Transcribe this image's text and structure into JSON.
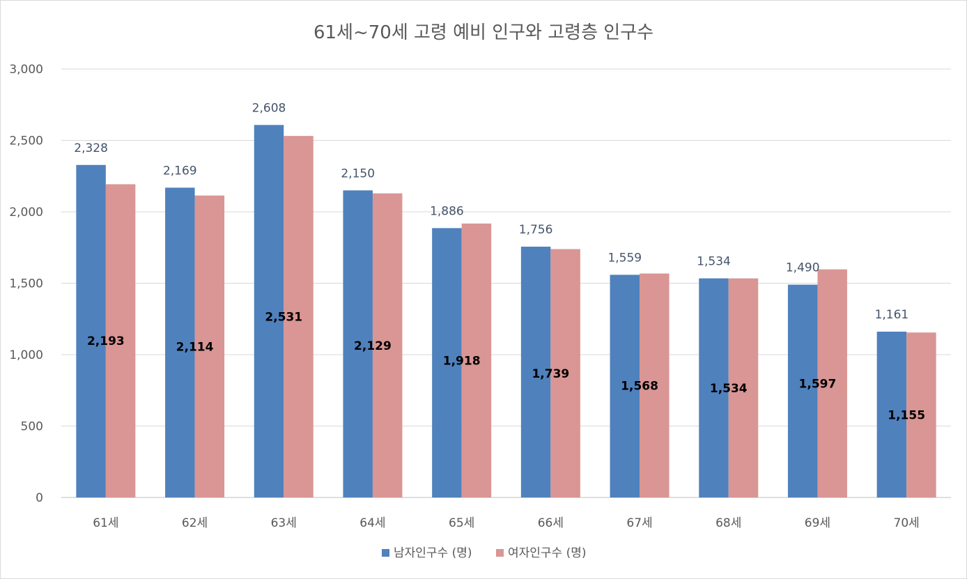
{
  "chart_data": {
    "type": "bar",
    "title": "61세~70세 고령 예비 인구와 고령층 인구수",
    "categories": [
      "61세",
      "62세",
      "63세",
      "64세",
      "65세",
      "66세",
      "67세",
      "68세",
      "69세",
      "70세"
    ],
    "series": [
      {
        "name": "남자인구수 (명)",
        "color": "#4f81bd",
        "values": [
          2328,
          2169,
          2608,
          2150,
          1886,
          1756,
          1559,
          1534,
          1490,
          1161
        ],
        "labels": [
          "2,328",
          "2,169",
          "2,608",
          "2,150",
          "1,886",
          "1,756",
          "1,559",
          "1,534",
          "1,490",
          "1,161"
        ]
      },
      {
        "name": "여자인구수 (명)",
        "color": "#d99694",
        "values": [
          2193,
          2114,
          2531,
          2129,
          1918,
          1739,
          1568,
          1534,
          1597,
          1155
        ],
        "labels": [
          "2,193",
          "2,114",
          "2,531",
          "2,129",
          "1,918",
          "1,739",
          "1,568",
          "1,534",
          "1,597",
          "1,155"
        ]
      }
    ],
    "y_ticks": [
      0,
      500,
      1000,
      1500,
      2000,
      2500,
      3000
    ],
    "y_tick_labels": [
      "0",
      "500",
      "1,000",
      "1,500",
      "2,000",
      "2,500",
      "3,000"
    ],
    "ylim": [
      0,
      3000
    ],
    "grid": true,
    "legend": "bottom"
  }
}
